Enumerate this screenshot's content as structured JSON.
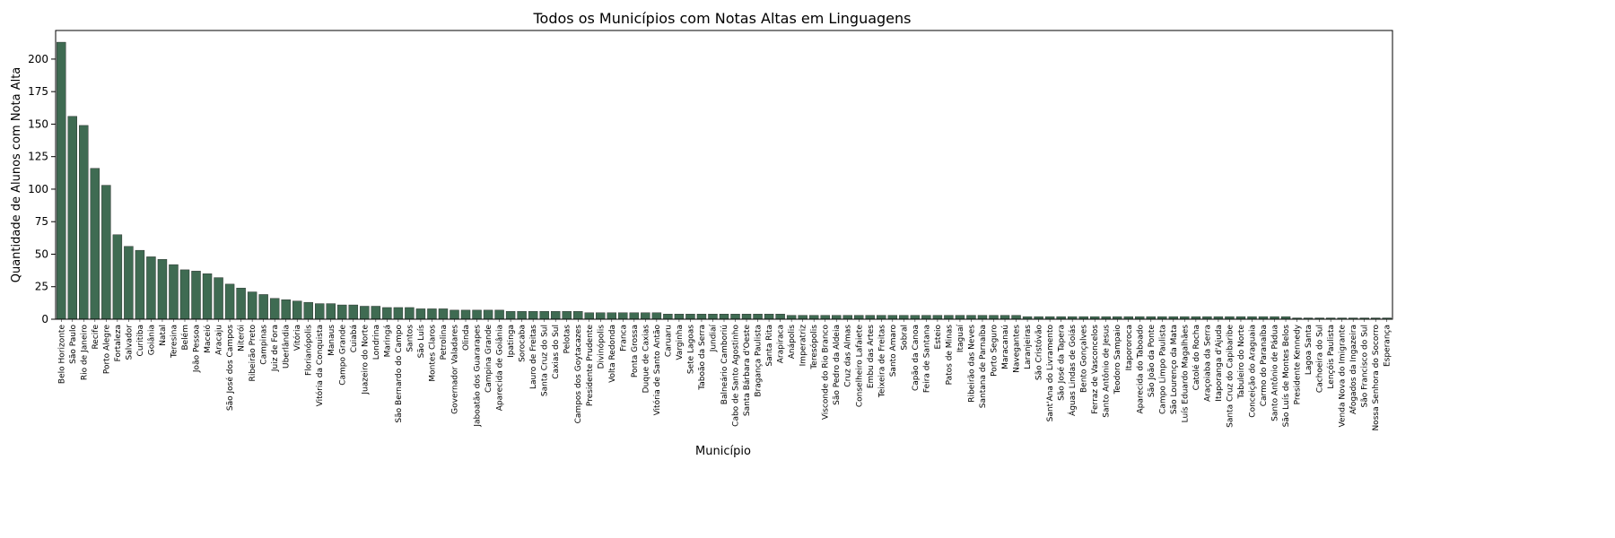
{
  "chart_data": {
    "type": "bar",
    "title": "Todos os Municípios com Notas Altas em Linguagens",
    "xlabel": "Município",
    "ylabel": "Quantidade de Alunos com Nota Alta",
    "ylim": [
      0,
      222
    ],
    "yticks": [
      0,
      25,
      50,
      75,
      100,
      125,
      150,
      175,
      200
    ],
    "grid": false,
    "bar_color": "#3f6b52",
    "bar_edge_color": "#1f1f1f",
    "categories": [
      "Belo Horizonte",
      "São Paulo",
      "Rio de Janeiro",
      "Recife",
      "Porto Alegre",
      "Fortaleza",
      "Salvador",
      "Curitiba",
      "Goiânia",
      "Natal",
      "Teresina",
      "Belém",
      "João Pessoa",
      "Maceió",
      "Aracaju",
      "São José dos Campos",
      "Niterói",
      "Ribeirão Preto",
      "Campinas",
      "Juiz de Fora",
      "Uberlândia",
      "Vitória",
      "Florianópolis",
      "Vitória da Conquista",
      "Manaus",
      "Campo Grande",
      "Cuiabá",
      "Juazeiro do Norte",
      "Londrina",
      "Maringá",
      "São Bernardo do Campo",
      "Santos",
      "São Luís",
      "Montes Claros",
      "Petrolina",
      "Governador Valadares",
      "Olinda",
      "Jaboatão dos Guararapes",
      "Campina Grande",
      "Aparecida de Goiânia",
      "Ipatinga",
      "Sorocaba",
      "Lauro de Freitas",
      "Santa Cruz do Sul",
      "Caxias do Sul",
      "Pelotas",
      "Campos dos Goytacazes",
      "Presidente Prudente",
      "Divinópolis",
      "Volta Redonda",
      "Franca",
      "Ponta Grossa",
      "Duque de Caxias",
      "Vitória de Santo Antão",
      "Caruaru",
      "Varginha",
      "Sete Lagoas",
      "Taboão da Serra",
      "Jundiaí",
      "Balneário Camboriú",
      "Cabo de Santo Agostinho",
      "Santa Bárbara d'Oeste",
      "Bragança Paulista",
      "Santa Rita",
      "Arapiraca",
      "Anápolis",
      "Imperatriz",
      "Teresópolis",
      "Visconde do Rio Branco",
      "São Pedro da Aldeia",
      "Cruz das Almas",
      "Conselheiro Lafaiete",
      "Embu das Artes",
      "Teixeira de Freitas",
      "Santo Amaro",
      "Sobral",
      "Capão da Canoa",
      "Feira de Santana",
      "Esteio",
      "Patos de Minas",
      "Itaguaí",
      "Ribeirão das Neves",
      "Santana de Parnaíba",
      "Porto Seguro",
      "Maracanaú",
      "Navegantes",
      "Laranjeiras",
      "São Cristóvão",
      "Sant'Ana do Livramento",
      "São José da Tapera",
      "Águas Lindas de Goiás",
      "Bento Gonçalves",
      "Ferraz de Vasconcelos",
      "Santo Antônio de Jesus",
      "Teodoro Sampaio",
      "Itapororoca",
      "Aparecida do Taboado",
      "São João da Ponte",
      "Campo Limpo Paulista",
      "São Lourenço da Mata",
      "Luís Eduardo Magalhães",
      "Catolé do Rocha",
      "Araçoiaba da Serra",
      "Itaporanga d'Ajuda",
      "Santa Cruz do Capibaribe",
      "Tabuleiro do Norte",
      "Conceição do Araguaia",
      "Carmo do Paranaíba",
      "Santo Antônio de Pádua",
      "São Luís de Montes Belos",
      "Presidente Kennedy",
      "Lagoa Santa",
      "Cachoeira do Sul",
      "Lençóis Paulista",
      "Venda Nova do Imigrante",
      "Afogados da Ingazeira",
      "São Francisco do Sul",
      "Nossa Senhora do Socorro",
      "Esperança"
    ],
    "values": [
      213,
      156,
      149,
      116,
      103,
      65,
      56,
      53,
      48,
      46,
      42,
      38,
      37,
      35,
      32,
      27,
      24,
      21,
      19,
      16,
      15,
      14,
      13,
      12,
      12,
      11,
      11,
      10,
      10,
      9,
      9,
      9,
      8,
      8,
      8,
      7,
      7,
      7,
      7,
      7,
      6,
      6,
      6,
      6,
      6,
      6,
      6,
      5,
      5,
      5,
      5,
      5,
      5,
      5,
      4,
      4,
      4,
      4,
      4,
      4,
      4,
      4,
      4,
      4,
      4,
      3,
      3,
      3,
      3,
      3,
      3,
      3,
      3,
      3,
      3,
      3,
      3,
      3,
      3,
      3,
      3,
      3,
      3,
      3,
      3,
      3,
      2,
      2,
      2,
      2,
      2,
      2,
      2,
      2,
      2,
      2,
      2,
      2,
      2,
      2,
      2,
      2,
      2,
      2,
      2,
      2,
      2,
      2,
      2,
      2,
      1,
      1,
      1,
      1,
      1,
      1,
      1,
      1,
      1
    ]
  }
}
